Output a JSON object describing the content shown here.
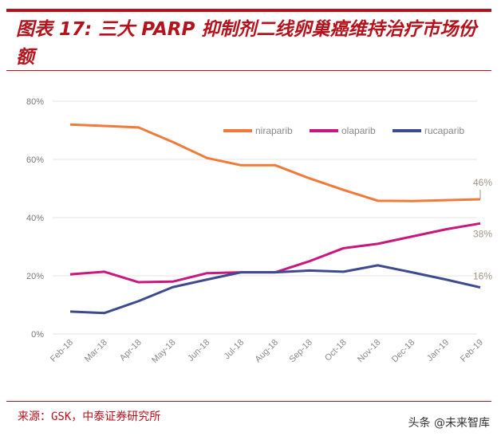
{
  "header": {
    "title": "图表 17: 三大 PARP 抑制剂二线卵巢癌维持治疗市场份额"
  },
  "footer": {
    "source": "来源：GSK，中泰证券研究所",
    "watermark": "头条 @未来智库"
  },
  "chart_data": {
    "type": "line",
    "title": "",
    "xlabel": "",
    "ylabel": "",
    "ylim": [
      0,
      80
    ],
    "yticks": [
      "0%",
      "20%",
      "40%",
      "60%",
      "80%"
    ],
    "grid": true,
    "legend_position": "top-right",
    "categories": [
      "Feb-18",
      "Mar-18",
      "Apr-18",
      "May-18",
      "Jun-18",
      "Jul-18",
      "Aug-18",
      "Sep-18",
      "Oct-18",
      "Nov-18",
      "Dec-18",
      "Jan-19",
      "Feb-19"
    ],
    "series": [
      {
        "name": "niraparib",
        "color": "#f07a3a",
        "values": [
          72,
          71.5,
          71,
          66,
          60.5,
          58,
          58,
          53.5,
          49.5,
          45.8,
          45.7,
          46,
          46.3
        ],
        "end_label": "46%"
      },
      {
        "name": "olaparib",
        "color": "#c8187e",
        "values": [
          20.5,
          21.4,
          17.8,
          18,
          20.9,
          21.2,
          21.2,
          25,
          29.5,
          31,
          33.5,
          36,
          38
        ],
        "end_label": "38%"
      },
      {
        "name": "rucaparib",
        "color": "#3f4a8e",
        "values": [
          7.7,
          7.2,
          11.3,
          16.1,
          18.7,
          21.2,
          21.2,
          21.8,
          21.4,
          23.6,
          21.2,
          18.7,
          16
        ],
        "end_label": "16%"
      }
    ]
  }
}
